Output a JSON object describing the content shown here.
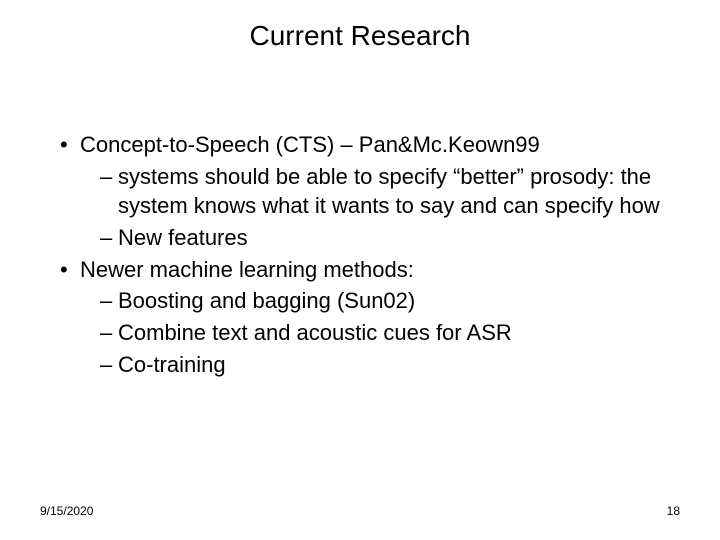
{
  "slide": {
    "title": "Current Research",
    "title_fontsize": 28,
    "body_fontsize": 22,
    "text_color": "#000000",
    "background_color": "#ffffff",
    "bullets": [
      {
        "level": 1,
        "text": "Concept-to-Speech (CTS) – Pan&Mc.Keown99"
      },
      {
        "level": 2,
        "text": "systems should be able to specify “better” prosody: the system knows what it wants to say and can specify how"
      },
      {
        "level": 2,
        "text": "New features"
      },
      {
        "level": 1,
        "text": "Newer machine learning methods:"
      },
      {
        "level": 2,
        "text": "Boosting and bagging (Sun02)"
      },
      {
        "level": 2,
        "text": "Combine text and acoustic cues for ASR"
      },
      {
        "level": 2,
        "text": "Co-training"
      }
    ],
    "footer": {
      "date": "9/15/2020",
      "page": "18",
      "fontsize": 12
    }
  }
}
